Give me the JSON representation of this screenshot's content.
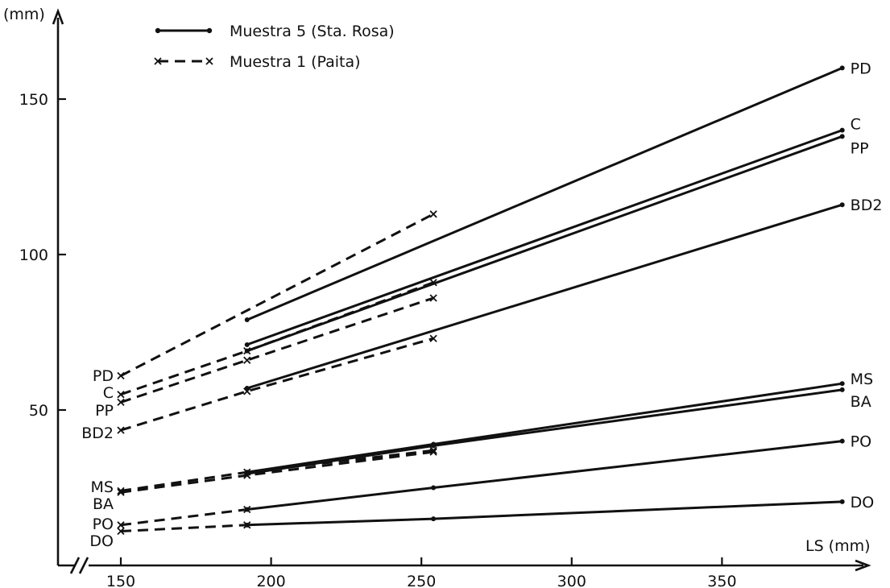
{
  "chart_data": {
    "type": "line",
    "title": "",
    "xlabel": "LS (mm)",
    "ylabel": "(mm)",
    "xlim": [
      150,
      400
    ],
    "ylim": [
      0,
      175
    ],
    "xticks": [
      150,
      200,
      250,
      300,
      350
    ],
    "yticks": [
      50,
      100,
      150
    ],
    "axis_break": "x-axis break before 150",
    "grid": false,
    "legend": {
      "placement": "top-left",
      "entries": [
        {
          "label": "Muestra 5 (Sta. Rosa)",
          "style": "solid-dot"
        },
        {
          "label": "Muestra 1 (Paita)",
          "style": "dashed-x"
        }
      ]
    },
    "series": [
      {
        "group": "Muestra 5 (Sta. Rosa)",
        "label": "PD",
        "style": "solid",
        "points": [
          [
            192,
            79
          ],
          [
            390,
            160
          ]
        ]
      },
      {
        "group": "Muestra 5 (Sta. Rosa)",
        "label": "C",
        "style": "solid",
        "points": [
          [
            192,
            71
          ],
          [
            390,
            140
          ]
        ]
      },
      {
        "group": "Muestra 5 (Sta. Rosa)",
        "label": "PP",
        "style": "solid",
        "points": [
          [
            192,
            69
          ],
          [
            390,
            138
          ]
        ]
      },
      {
        "group": "Muestra 5 (Sta. Rosa)",
        "label": "BD2",
        "style": "solid",
        "points": [
          [
            192,
            57
          ],
          [
            390,
            116
          ]
        ]
      },
      {
        "group": "Muestra 5 (Sta. Rosa)",
        "label": "MS",
        "style": "solid",
        "points": [
          [
            192,
            30
          ],
          [
            254,
            39
          ],
          [
            390,
            58.5
          ]
        ]
      },
      {
        "group": "Muestra 5 (Sta. Rosa)",
        "label": "BA",
        "style": "solid",
        "points": [
          [
            192,
            29.5
          ],
          [
            254,
            38.5
          ],
          [
            390,
            56.5
          ]
        ]
      },
      {
        "group": "Muestra 5 (Sta. Rosa)",
        "label": "PO",
        "style": "solid",
        "points": [
          [
            192,
            18
          ],
          [
            254,
            25
          ],
          [
            390,
            40
          ]
        ]
      },
      {
        "group": "Muestra 5 (Sta. Rosa)",
        "label": "DO",
        "style": "solid",
        "points": [
          [
            192,
            13
          ],
          [
            254,
            15
          ],
          [
            390,
            20.5
          ]
        ]
      },
      {
        "group": "Muestra 1 (Paita)",
        "label": "PD",
        "style": "dashed",
        "points": [
          [
            150,
            61
          ],
          [
            254,
            113
          ]
        ]
      },
      {
        "group": "Muestra 1 (Paita)",
        "label": "C",
        "style": "dashed",
        "points": [
          [
            150,
            55
          ],
          [
            192,
            69
          ],
          [
            254,
            91
          ]
        ]
      },
      {
        "group": "Muestra 1 (Paita)",
        "label": "PP",
        "style": "dashed",
        "points": [
          [
            150,
            52.5
          ],
          [
            192,
            66
          ],
          [
            254,
            86
          ]
        ]
      },
      {
        "group": "Muestra 1 (Paita)",
        "label": "BD2",
        "style": "dashed",
        "points": [
          [
            150,
            43.5
          ],
          [
            192,
            56
          ],
          [
            254,
            73
          ]
        ]
      },
      {
        "group": "Muestra 1 (Paita)",
        "label": "MS",
        "style": "dashed",
        "points": [
          [
            150,
            24
          ],
          [
            192,
            30
          ],
          [
            254,
            37
          ]
        ]
      },
      {
        "group": "Muestra 1 (Paita)",
        "label": "BA",
        "style": "dashed",
        "points": [
          [
            150,
            23.5
          ],
          [
            192,
            29
          ],
          [
            254,
            36.5
          ]
        ]
      },
      {
        "group": "Muestra 1 (Paita)",
        "label": "PO",
        "style": "dashed",
        "points": [
          [
            150,
            13
          ],
          [
            192,
            18
          ]
        ]
      },
      {
        "group": "Muestra 1 (Paita)",
        "label": "DO",
        "style": "dashed",
        "points": [
          [
            150,
            11
          ],
          [
            192,
            13
          ]
        ]
      }
    ]
  }
}
